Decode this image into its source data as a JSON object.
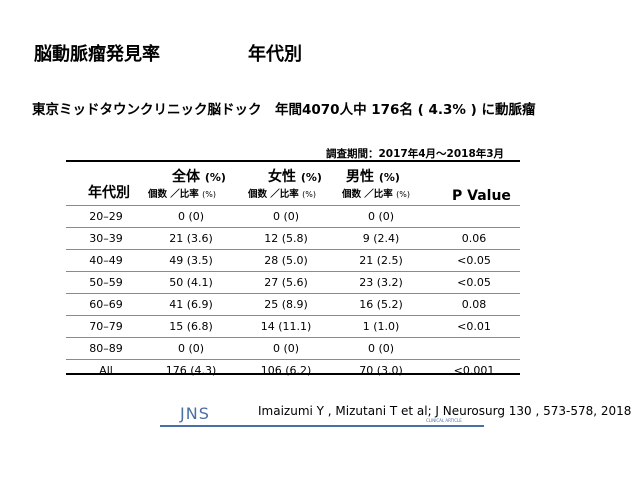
{
  "title": {
    "main": "脳動脈瘤発見率",
    "sub": "年代別"
  },
  "subtitle": "東京ミッドタウンクリニック脳ドック　年間4070人中 176名 ( 4.3% ) に動脈瘤",
  "survey_period": "調査期間：2017年4月～2018年3月",
  "table": {
    "headers": {
      "age": "年代別",
      "all": "全体",
      "female": "女性",
      "male": "男性",
      "unit": "(%)",
      "sub_label": "個数 ／比率",
      "sub_unit": "(%)",
      "p": "P Value"
    },
    "rows": [
      {
        "age": "20–29",
        "all": "0 (0)",
        "female": "0 (0)",
        "male": "0 (0)",
        "p": ""
      },
      {
        "age": "30–39",
        "all": "21 (3.6)",
        "female": "12 (5.8)",
        "male": "9 (2.4)",
        "p": "0.06"
      },
      {
        "age": "40–49",
        "all": "49 (3.5)",
        "female": "28 (5.0)",
        "male": "21 (2.5)",
        "p": "<0.05"
      },
      {
        "age": "50–59",
        "all": "50 (4.1)",
        "female": "27 (5.6)",
        "male": "23 (3.2)",
        "p": "<0.05"
      },
      {
        "age": "60–69",
        "all": "41 (6.9)",
        "female": "25 (8.9)",
        "male": "16 (5.2)",
        "p": "0.08"
      },
      {
        "age": "70–79",
        "all": "15 (6.8)",
        "female": "14 (11.1)",
        "male": "1 (1.0)",
        "p": "<0.01"
      },
      {
        "age": "80–89",
        "all": "0 (0)",
        "female": "0 (0)",
        "male": "0 (0)",
        "p": ""
      },
      {
        "age": "All",
        "all": "176 (4.3)",
        "female": "106 (6.2)",
        "male": "70 (3.0)",
        "p": "<0.001"
      }
    ]
  },
  "journal_logo": {
    "text": "JNS",
    "small": "CLINICAL ARTICLE",
    "color": "#4a6fa5"
  },
  "citation": "Imaizumi Y , Mizutani T et al; J Neurosurg 130 , 573-578, 2018"
}
